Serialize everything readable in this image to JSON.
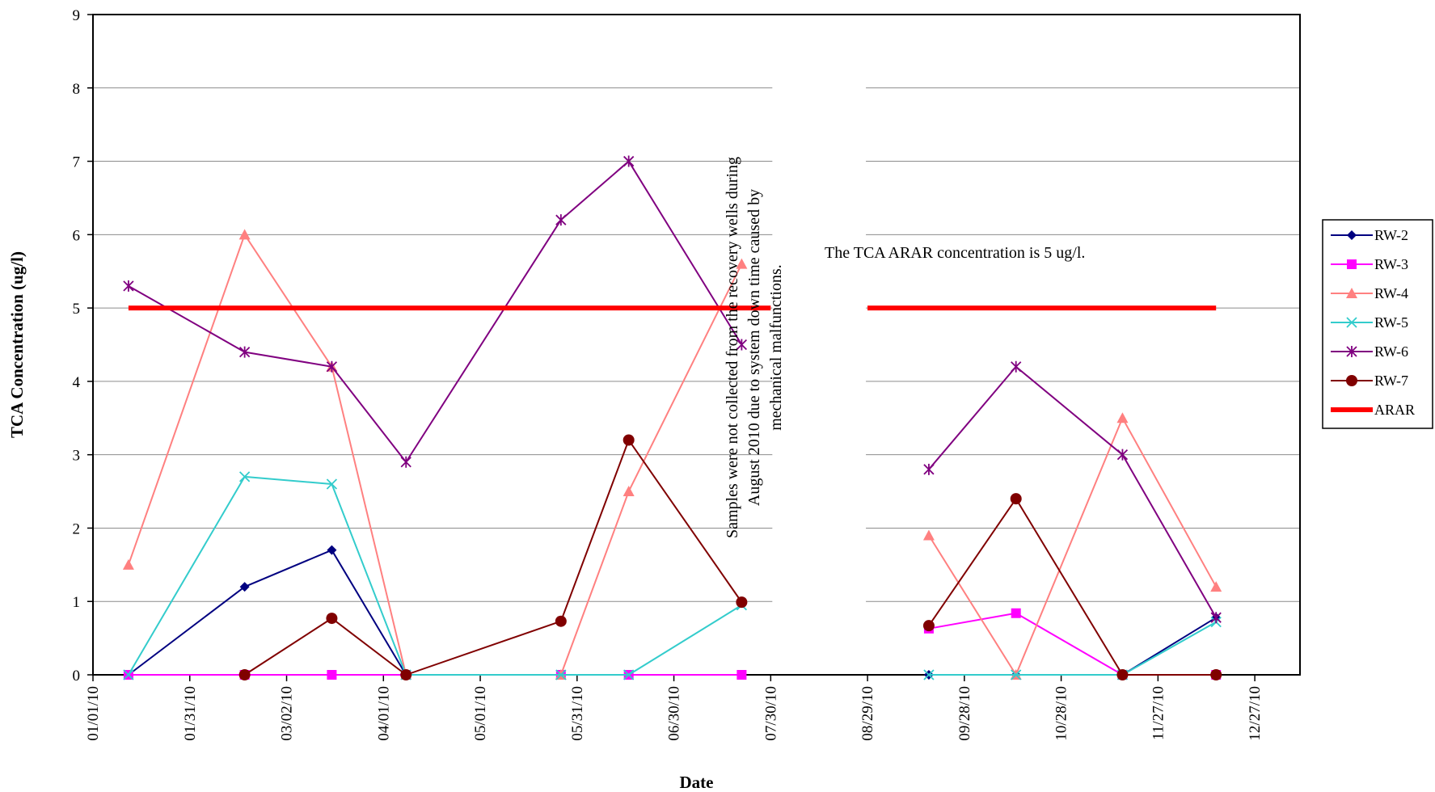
{
  "chart_data": {
    "type": "line",
    "title": "",
    "xlabel": "Date",
    "ylabel": "TCA Concentration (ug/l)",
    "x_axis": {
      "type": "date",
      "min": "2010-01-01",
      "max": "2011-01-10",
      "ticks": [
        {
          "date": "2010-01-01",
          "label": "01/01/10"
        },
        {
          "date": "2010-01-31",
          "label": "01/31/10"
        },
        {
          "date": "2010-03-02",
          "label": "03/02/10"
        },
        {
          "date": "2010-04-01",
          "label": "04/01/10"
        },
        {
          "date": "2010-05-01",
          "label": "05/01/10"
        },
        {
          "date": "2010-05-31",
          "label": "05/31/10"
        },
        {
          "date": "2010-06-30",
          "label": "06/30/10"
        },
        {
          "date": "2010-07-30",
          "label": "07/30/10"
        },
        {
          "date": "2010-08-29",
          "label": "08/29/10"
        },
        {
          "date": "2010-09-28",
          "label": "09/28/10"
        },
        {
          "date": "2010-10-28",
          "label": "10/28/10"
        },
        {
          "date": "2010-11-27",
          "label": "11/27/10"
        },
        {
          "date": "2010-12-27",
          "label": "12/27/10"
        }
      ]
    },
    "ylim": [
      0,
      9
    ],
    "yticks": [
      0,
      1,
      2,
      3,
      4,
      5,
      6,
      7,
      8,
      9
    ],
    "grid": "horizontal",
    "legend_position": "right",
    "gap": {
      "start": "2010-07-30",
      "end": "2010-08-29"
    },
    "series": [
      {
        "name": "RW-2",
        "color": "#000080",
        "marker": "diamond",
        "segments": [
          [
            {
              "x": "2010-01-12",
              "y": 0
            },
            {
              "x": "2010-02-17",
              "y": 1.2
            },
            {
              "x": "2010-03-16",
              "y": 1.7
            },
            {
              "x": "2010-04-08",
              "y": 0
            },
            {
              "x": "2010-05-26",
              "y": 0
            },
            {
              "x": "2010-06-16",
              "y": 0
            }
          ],
          [
            {
              "x": "2010-09-17",
              "y": 0
            },
            {
              "x": "2010-10-14",
              "y": 0
            },
            {
              "x": "2010-11-16",
              "y": 0
            },
            {
              "x": "2010-12-15",
              "y": 0.78
            }
          ]
        ]
      },
      {
        "name": "RW-3",
        "color": "#FF00FF",
        "marker": "square",
        "segments": [
          [
            {
              "x": "2010-01-12",
              "y": 0
            },
            {
              "x": "2010-02-17",
              "y": 0
            },
            {
              "x": "2010-03-16",
              "y": 0
            },
            {
              "x": "2010-04-08",
              "y": 0
            },
            {
              "x": "2010-05-26",
              "y": 0
            },
            {
              "x": "2010-06-16",
              "y": 0
            },
            {
              "x": "2010-07-21",
              "y": 0
            }
          ],
          [
            {
              "x": "2010-09-17",
              "y": 0.63
            },
            {
              "x": "2010-10-14",
              "y": 0.84
            },
            {
              "x": "2010-11-16",
              "y": 0
            },
            {
              "x": "2010-12-15",
              "y": 0
            }
          ]
        ]
      },
      {
        "name": "RW-4",
        "color": "#FF8080",
        "marker": "triangle",
        "segments": [
          [
            {
              "x": "2010-01-12",
              "y": 1.5
            },
            {
              "x": "2010-02-17",
              "y": 6.0
            },
            {
              "x": "2010-03-16",
              "y": 4.2
            },
            {
              "x": "2010-04-08",
              "y": 0
            },
            {
              "x": "2010-05-26",
              "y": 0
            },
            {
              "x": "2010-06-16",
              "y": 2.5
            },
            {
              "x": "2010-07-21",
              "y": 5.6
            }
          ],
          [
            {
              "x": "2010-09-17",
              "y": 1.9
            },
            {
              "x": "2010-10-14",
              "y": 0
            },
            {
              "x": "2010-11-16",
              "y": 3.5
            },
            {
              "x": "2010-12-15",
              "y": 1.2
            }
          ]
        ]
      },
      {
        "name": "RW-5",
        "color": "#33CCCC",
        "marker": "x",
        "segments": [
          [
            {
              "x": "2010-01-12",
              "y": 0
            },
            {
              "x": "2010-02-17",
              "y": 2.7
            },
            {
              "x": "2010-03-16",
              "y": 2.6
            },
            {
              "x": "2010-04-08",
              "y": 0
            },
            {
              "x": "2010-05-26",
              "y": 0
            },
            {
              "x": "2010-06-16",
              "y": 0
            },
            {
              "x": "2010-07-21",
              "y": 0.95
            }
          ],
          [
            {
              "x": "2010-09-17",
              "y": 0
            },
            {
              "x": "2010-10-14",
              "y": 0
            },
            {
              "x": "2010-11-16",
              "y": 0
            },
            {
              "x": "2010-12-15",
              "y": 0.72
            }
          ]
        ]
      },
      {
        "name": "RW-6",
        "color": "#800080",
        "marker": "asterisk",
        "segments": [
          [
            {
              "x": "2010-01-12",
              "y": 5.3
            },
            {
              "x": "2010-02-17",
              "y": 4.4
            },
            {
              "x": "2010-03-16",
              "y": 4.2
            },
            {
              "x": "2010-04-08",
              "y": 2.9
            },
            {
              "x": "2010-05-26",
              "y": 6.2
            },
            {
              "x": "2010-06-16",
              "y": 7.0
            },
            {
              "x": "2010-07-21",
              "y": 4.5
            }
          ],
          [
            {
              "x": "2010-09-17",
              "y": 2.8
            },
            {
              "x": "2010-10-14",
              "y": 4.2
            },
            {
              "x": "2010-11-16",
              "y": 3.0
            },
            {
              "x": "2010-12-15",
              "y": 0.78
            }
          ]
        ]
      },
      {
        "name": "RW-7",
        "color": "#800000",
        "marker": "circle",
        "segments": [
          [
            {
              "x": "2010-02-17",
              "y": 0
            },
            {
              "x": "2010-03-16",
              "y": 0.77
            },
            {
              "x": "2010-04-08",
              "y": 0
            },
            {
              "x": "2010-05-26",
              "y": 0.73
            },
            {
              "x": "2010-06-16",
              "y": 3.2
            },
            {
              "x": "2010-07-21",
              "y": 0.99
            }
          ],
          [
            {
              "x": "2010-09-17",
              "y": 0.67
            },
            {
              "x": "2010-10-14",
              "y": 2.4
            },
            {
              "x": "2010-11-16",
              "y": 0
            },
            {
              "x": "2010-12-15",
              "y": 0
            }
          ]
        ]
      },
      {
        "name": "ARAR",
        "color": "#FF0000",
        "marker": "none",
        "line_width": "thick",
        "segments": [
          [
            {
              "x": "2010-01-12",
              "y": 5
            },
            {
              "x": "2010-07-30",
              "y": 5
            }
          ],
          [
            {
              "x": "2010-08-29",
              "y": 5
            },
            {
              "x": "2010-12-15",
              "y": 5
            }
          ]
        ]
      }
    ],
    "annotations": {
      "gap_note": [
        "Samples were not collected from the recovery wells during",
        "August 2010 due to system down time caused by",
        "mechanical malfunctions."
      ],
      "arar_note": "The TCA ARAR concentration is 5 ug/l."
    }
  }
}
